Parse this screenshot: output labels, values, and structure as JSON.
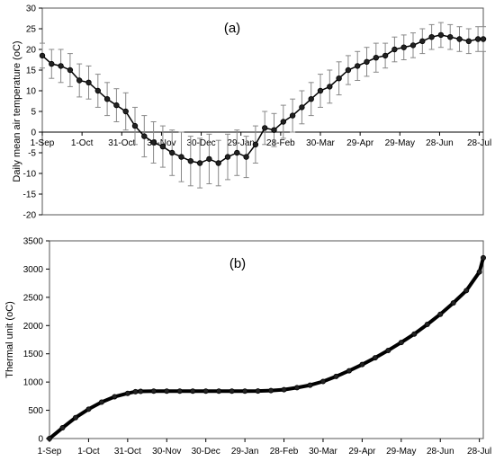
{
  "chart_data": [
    {
      "type": "line",
      "panel_label": "(a)",
      "ylabel": "Daily mean air temperature (oC)",
      "xlabel": "",
      "ylim": [
        -20,
        30
      ],
      "yticks": [
        30,
        25,
        20,
        15,
        10,
        5,
        0,
        -5,
        -10,
        -15,
        -20
      ],
      "xticks": [
        "1-Sep",
        "1-Oct",
        "31-Oct",
        "30-Nov",
        "30-Dec",
        "29-Jan",
        "28-Feb",
        "30-Mar",
        "29-Apr",
        "29-May",
        "28-Jun",
        "28-Jul"
      ],
      "xtick_days": [
        0,
        30,
        60,
        90,
        120,
        150,
        180,
        210,
        240,
        270,
        300,
        330
      ],
      "x_range_days": [
        0,
        333
      ],
      "x_axis_at_y": 0,
      "tick_labels_below_axis": false,
      "grid": false,
      "legend": "none",
      "series": [
        {
          "marker": "circle",
          "color": "#000000",
          "error_bar_color": "#888888",
          "x": [
            0,
            7,
            14,
            21,
            28,
            35,
            42,
            49,
            56,
            63,
            70,
            77,
            84,
            91,
            98,
            105,
            112,
            119,
            126,
            133,
            140,
            147,
            154,
            161,
            168,
            175,
            182,
            189,
            196,
            203,
            210,
            217,
            224,
            231,
            238,
            245,
            252,
            259,
            266,
            273,
            280,
            287,
            294,
            301,
            308,
            315,
            322,
            329,
            333
          ],
          "values": [
            18.5,
            16.5,
            16,
            15,
            12.5,
            12,
            10,
            8,
            6.5,
            5,
            1.5,
            -1,
            -2.5,
            -3.5,
            -5,
            -6,
            -7,
            -7.5,
            -6.5,
            -7.5,
            -6,
            -5,
            -6,
            -3,
            1,
            0.5,
            2.5,
            4,
            6,
            8,
            10,
            11,
            13,
            15,
            16,
            17,
            18,
            18.5,
            20,
            20.5,
            21,
            22,
            23,
            23.5,
            23,
            22.5,
            22,
            22.5,
            22.5
          ],
          "errors": [
            3,
            3.5,
            4,
            4,
            4,
            4,
            4,
            4,
            4,
            4.5,
            4.5,
            5,
            5,
            5,
            5.5,
            6,
            6,
            6,
            6,
            5.5,
            5.5,
            5.5,
            5,
            4.5,
            4,
            4,
            4,
            4,
            4,
            4,
            4,
            4,
            4,
            3.5,
            3.5,
            3.5,
            3.5,
            3,
            3,
            3,
            3,
            3,
            3,
            3,
            3,
            3,
            3,
            3,
            3
          ]
        }
      ]
    },
    {
      "type": "line",
      "panel_label": "(b)",
      "ylabel": "Thermal unit (oC)",
      "xlabel": "",
      "ylim": [
        0,
        3500
      ],
      "yticks": [
        3500,
        3000,
        2500,
        2000,
        1500,
        1000,
        500,
        0
      ],
      "xticks": [
        "1-Sep",
        "1-Oct",
        "31-Oct",
        "30-Nov",
        "30-Dec",
        "29-Jan",
        "28-Feb",
        "30-Mar",
        "29-Apr",
        "29-May",
        "28-Jun",
        "28-Jul"
      ],
      "xtick_days": [
        0,
        30,
        60,
        90,
        120,
        150,
        180,
        210,
        240,
        270,
        300,
        330
      ],
      "x_range_days": [
        0,
        333
      ],
      "tick_labels_below_axis": true,
      "grid": false,
      "legend": "none",
      "series": [
        {
          "marker": "circle",
          "color": "#000000",
          "x": [
            0,
            10,
            20,
            30,
            40,
            50,
            60,
            66,
            70,
            80,
            90,
            100,
            110,
            120,
            130,
            140,
            150,
            160,
            170,
            180,
            190,
            200,
            210,
            220,
            230,
            240,
            250,
            260,
            270,
            280,
            290,
            300,
            310,
            320,
            330,
            333
          ],
          "values": [
            0,
            190,
            370,
            520,
            645,
            740,
            800,
            830,
            835,
            840,
            840,
            840,
            840,
            840,
            840,
            840,
            840,
            842,
            850,
            865,
            900,
            945,
            1010,
            1100,
            1200,
            1310,
            1430,
            1560,
            1700,
            1850,
            2020,
            2200,
            2400,
            2620,
            2950,
            3200
          ]
        }
      ]
    }
  ]
}
